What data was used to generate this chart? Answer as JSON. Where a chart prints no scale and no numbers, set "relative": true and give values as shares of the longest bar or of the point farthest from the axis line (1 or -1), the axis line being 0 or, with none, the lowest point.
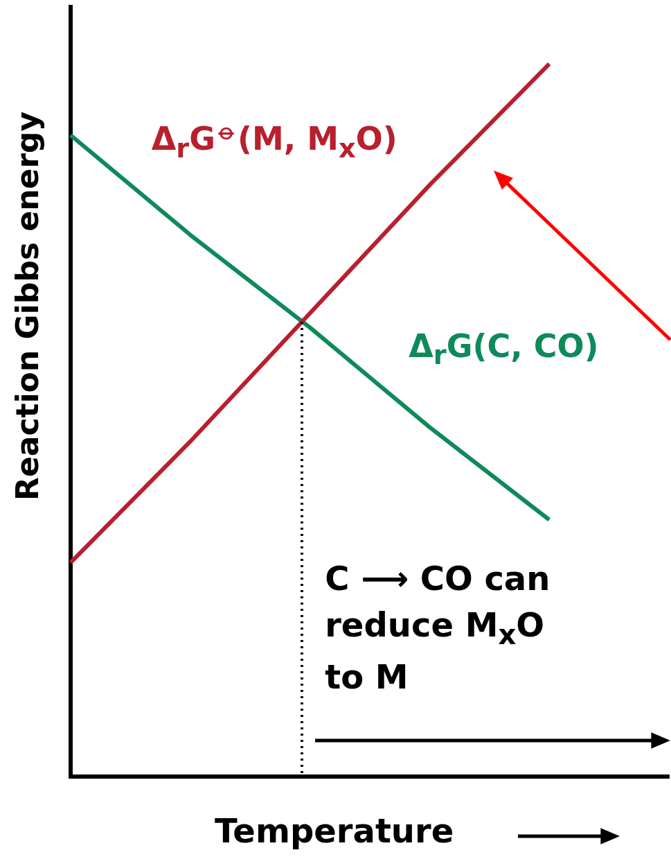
{
  "chart_data": {
    "type": "line",
    "relative": true,
    "xlabel": "Temperature",
    "ylabel": "Reaction Gibbs energy",
    "categories": [
      null,
      null,
      null,
      null,
      null,
      null
    ],
    "series": [
      {
        "name": "Δ$_{r}$G$^{⦵}$(M, M$_{x}$O)",
        "color": "#b8202e",
        "values": [
          0.3,
          0.47,
          0.65,
          0.83,
          1,
          null
        ]
      },
      {
        "name": "Δ$_{r}$G(C, CO)",
        "color": "#0e8a5a",
        "values": [
          0.9,
          0.76,
          0.63,
          0.49,
          0.36,
          null
        ]
      }
    ],
    "annotations": [
      "C ⟶ CO can reduce M$_{x}$O to M"
    ]
  }
}
